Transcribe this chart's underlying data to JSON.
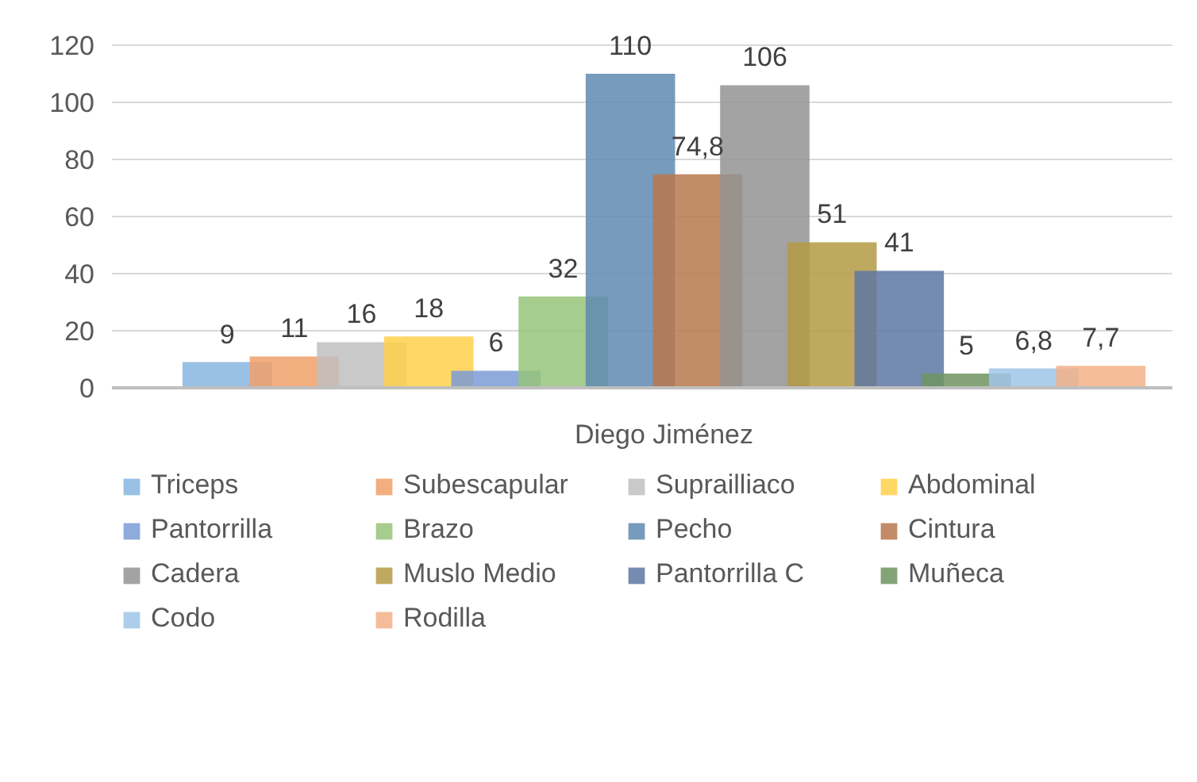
{
  "chart_data": {
    "type": "bar",
    "categories": [
      "Diego Jiménez"
    ],
    "ylim": [
      0,
      120
    ],
    "yticks": [
      0,
      20,
      40,
      60,
      80,
      100,
      120
    ],
    "grid": "y",
    "legend": "bottom",
    "series": [
      {
        "name": "Triceps",
        "color": "#87b5e0",
        "values": [
          9
        ],
        "value_labels": [
          "9"
        ]
      },
      {
        "name": "Subescapular",
        "color": "#f1a06a",
        "values": [
          11
        ],
        "value_labels": [
          "11"
        ]
      },
      {
        "name": "Suprailliaco",
        "color": "#bfbfbf",
        "values": [
          16
        ],
        "value_labels": [
          "16"
        ]
      },
      {
        "name": "Abdominal",
        "color": "#ffd04a",
        "values": [
          18
        ],
        "value_labels": [
          "18"
        ]
      },
      {
        "name": "Pantorrilla",
        "color": "#7b9bd6",
        "values": [
          6
        ],
        "value_labels": [
          "6"
        ]
      },
      {
        "name": "Brazo",
        "color": "#98c47a",
        "values": [
          32
        ],
        "value_labels": [
          "32"
        ]
      },
      {
        "name": "Pecho",
        "color": "#5f8ab0",
        "values": [
          110
        ],
        "value_labels": [
          "110"
        ]
      },
      {
        "name": "Cintura",
        "color": "#b8784e",
        "values": [
          74.8
        ],
        "value_labels": [
          "74,8"
        ]
      },
      {
        "name": "Cadera",
        "color": "#939393",
        "values": [
          106
        ],
        "value_labels": [
          "106"
        ]
      },
      {
        "name": "Muslo Medio",
        "color": "#b49a45",
        "values": [
          51
        ],
        "value_labels": [
          "51"
        ]
      },
      {
        "name": "Pantorrilla C",
        "color": "#5e77a2",
        "values": [
          41
        ],
        "value_labels": [
          "41"
        ]
      },
      {
        "name": "Muñeca",
        "color": "#6f9460",
        "values": [
          5
        ],
        "value_labels": [
          "5"
        ]
      },
      {
        "name": "Codo",
        "color": "#9fc5e8",
        "values": [
          6.8
        ],
        "value_labels": [
          "6,8"
        ]
      },
      {
        "name": "Rodilla",
        "color": "#f3b088",
        "values": [
          7.7
        ],
        "value_labels": [
          "7,7"
        ]
      }
    ]
  }
}
